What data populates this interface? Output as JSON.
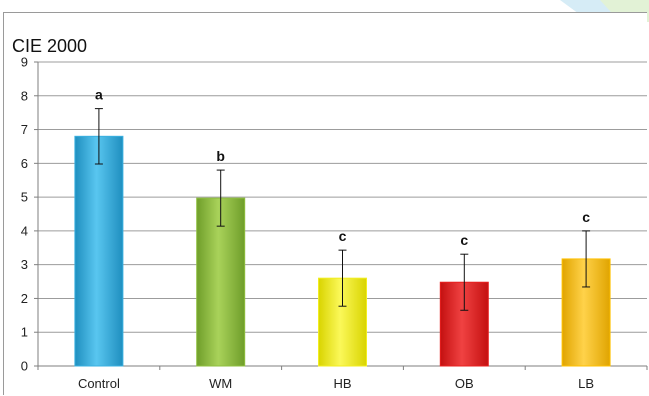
{
  "chart_data": {
    "type": "bar",
    "title": "CIE 2000",
    "xlabel": "",
    "ylabel": "",
    "ylim": [
      0,
      9
    ],
    "yticks": [
      0,
      1,
      2,
      3,
      4,
      5,
      6,
      7,
      8,
      9
    ],
    "grid": true,
    "legend": "none",
    "categories": [
      "Control",
      "WM",
      "HB",
      "OB",
      "LB"
    ],
    "values": [
      6.8,
      4.97,
      2.6,
      2.48,
      3.17
    ],
    "error": [
      0.82,
      0.83,
      0.83,
      0.83,
      0.83
    ],
    "annotations": [
      "a",
      "b",
      "c",
      "c",
      "c"
    ],
    "colors": [
      "#3ab0e0",
      "#8fbf3f",
      "#f2ee1f",
      "#e8201f",
      "#ffc000"
    ]
  }
}
